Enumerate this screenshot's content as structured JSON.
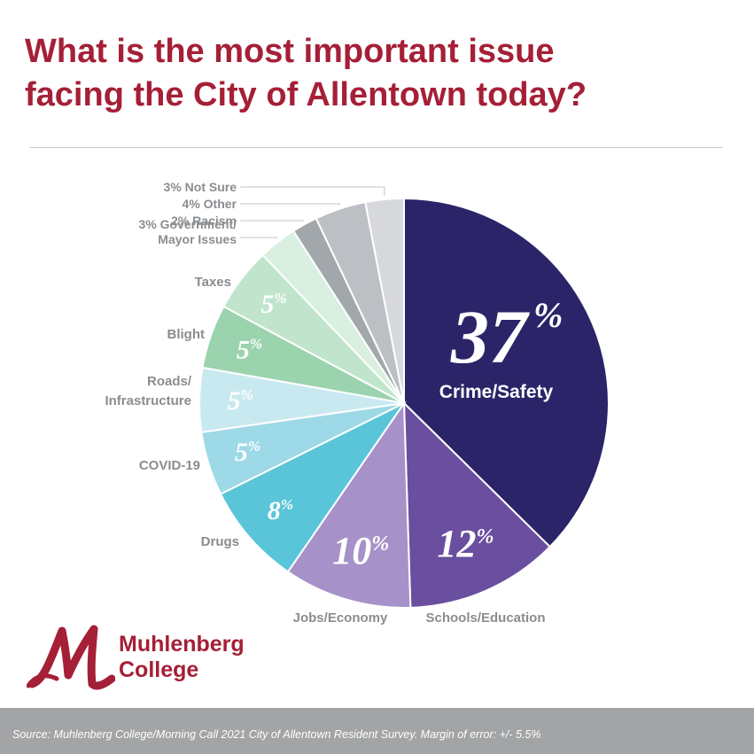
{
  "title_line1": "What is the most important issue",
  "title_line2": "facing the City of Allentown today?",
  "chart_data": {
    "type": "pie",
    "title": "What is the most important issue facing the City of Allentown today?",
    "slices": [
      {
        "label": "Crime/Safety",
        "value": 37,
        "display": "37",
        "color": "#2b2468",
        "label_style": "inside"
      },
      {
        "label": "Schools/Education",
        "value": 12,
        "display": "12",
        "color": "#6a4e9f",
        "label_style": "outer-value"
      },
      {
        "label": "Jobs/Economy",
        "value": 10,
        "display": "10",
        "color": "#a692c8",
        "label_style": "outer-value"
      },
      {
        "label": "Drugs",
        "value": 8,
        "display": "8",
        "color": "#5ac5d9",
        "label_style": "outer-value"
      },
      {
        "label": "COVID-19",
        "value": 5,
        "display": "5",
        "color": "#9dd9e6",
        "label_style": "outer-value"
      },
      {
        "label": "Roads/ Infrastructure",
        "label_lines": [
          "Roads/",
          "Infrastructure"
        ],
        "value": 5,
        "display": "5",
        "color": "#c9e9f0",
        "label_style": "outer-value"
      },
      {
        "label": "Blight",
        "value": 5,
        "display": "5",
        "color": "#9bd3ae",
        "label_style": "outer-value"
      },
      {
        "label": "Taxes",
        "value": 5,
        "display": "5",
        "color": "#c0e5cc",
        "label_style": "outer-value"
      },
      {
        "label": "3% Government/ Mayor Issues",
        "label_lines": [
          "3% Government/",
          "Mayor Issues"
        ],
        "value": 3,
        "color": "#d9efdf",
        "label_style": "leader"
      },
      {
        "label": "2% Racism",
        "value": 2,
        "color": "#a2a7ac",
        "label_style": "leader"
      },
      {
        "label": "4% Other",
        "value": 4,
        "color": "#bcc0c4",
        "label_style": "leader"
      },
      {
        "label": "3% Not Sure",
        "value": 3,
        "color": "#d6d8db",
        "label_style": "leader"
      }
    ],
    "percent_symbol": "%"
  },
  "logo": {
    "line1": "Muhlenberg",
    "line2": "College"
  },
  "source": "Source: Muhlenberg College/Morning Call 2021 City of Allentown Resident Survey. Margin of error: +/- 5.5%"
}
